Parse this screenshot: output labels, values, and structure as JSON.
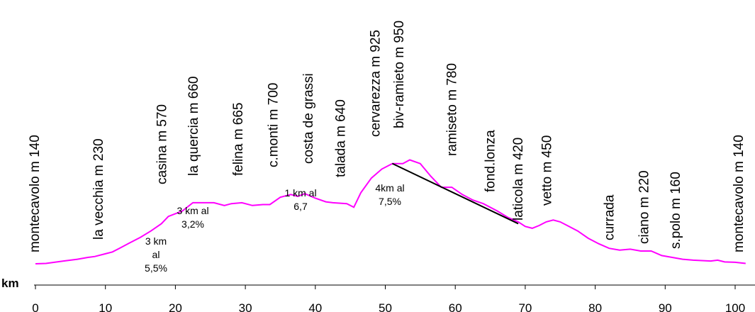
{
  "chart_data": {
    "type": "line",
    "xlabel": "km",
    "xlim": [
      0,
      102
    ],
    "x_ticks": [
      0,
      10,
      20,
      30,
      40,
      50,
      60,
      70,
      80,
      90,
      100
    ],
    "colors": {
      "profile": "#ff00ff",
      "segment": "#000000",
      "axis": "#000000"
    },
    "series": [
      {
        "x": [
          0,
          1.5,
          4,
          6,
          7.5,
          8.5,
          10,
          11,
          12,
          13.5,
          15,
          16.5,
          18,
          19,
          21,
          22.5,
          24,
          25.5,
          27,
          28,
          29.5,
          31,
          32.5,
          33.5,
          35,
          36.5,
          37.5,
          38.5,
          40,
          41.5,
          42.5,
          44.5,
          45.5,
          46.5,
          48,
          49.5,
          51,
          52.5,
          53.5,
          55,
          56.5,
          58,
          59.5,
          61,
          62.5,
          64,
          66,
          67.5,
          69,
          70,
          71,
          72,
          73,
          74,
          75,
          76,
          77.5,
          79,
          80.5,
          82,
          83.5,
          85,
          86.5,
          88,
          89.5,
          91,
          92.5,
          94,
          95,
          96.5,
          97.5,
          98.5,
          100,
          101.5
        ],
        "y": [
          140,
          142,
          155,
          165,
          175,
          180,
          195,
          205,
          225,
          255,
          285,
          320,
          360,
          400,
          430,
          475,
          475,
          475,
          460,
          470,
          475,
          460,
          465,
          465,
          505,
          520,
          510,
          525,
          500,
          480,
          475,
          470,
          450,
          530,
          610,
          660,
          690,
          690,
          710,
          690,
          620,
          560,
          560,
          520,
          490,
          470,
          430,
          395,
          370,
          345,
          335,
          350,
          370,
          380,
          370,
          350,
          320,
          280,
          250,
          225,
          215,
          220,
          210,
          210,
          185,
          175,
          165,
          160,
          158,
          155,
          160,
          150,
          148,
          142
        ]
      }
    ],
    "segment_line": {
      "from": [
        51,
        690
      ],
      "to": [
        69,
        360
      ]
    },
    "places": [
      {
        "label": "montecavolo m 140",
        "km": 0
      },
      {
        "label": "la vecchia m 230",
        "km": 9
      },
      {
        "label": "casina m 570",
        "km": 18
      },
      {
        "label": "la quercia m 660",
        "km": 22.5
      },
      {
        "label": "felina m 665",
        "km": 29
      },
      {
        "label": "c.monti m 700",
        "km": 34
      },
      {
        "label": "costa de grassi",
        "km": 39
      },
      {
        "label": "talada m 640",
        "km": 43.5
      },
      {
        "label": "cervarezza m 925",
        "km": 48.5
      },
      {
        "label": "biv-ramieto m 950",
        "km": 52
      },
      {
        "label": "ramiseto m 780",
        "km": 59.5
      },
      {
        "label": "fond.lonza",
        "km": 65
      },
      {
        "label": "laticola m 420",
        "km": 69
      },
      {
        "label": "vetto m 450",
        "km": 73
      },
      {
        "label": "currada",
        "km": 82
      },
      {
        "label": "ciano m 220",
        "km": 87
      },
      {
        "label": "s.polo m 160",
        "km": 91.5
      },
      {
        "label": "montecavolo m 140",
        "km": 100.5
      }
    ],
    "notes": [
      {
        "lines": [
          "3 km",
          "al",
          "5,5%"
        ]
      },
      {
        "lines": [
          "3 km  al",
          "3,2%"
        ]
      },
      {
        "lines": [
          "1 km  al",
          "6,7"
        ]
      },
      {
        "lines": [
          "4km al",
          "7,5%"
        ]
      }
    ]
  }
}
